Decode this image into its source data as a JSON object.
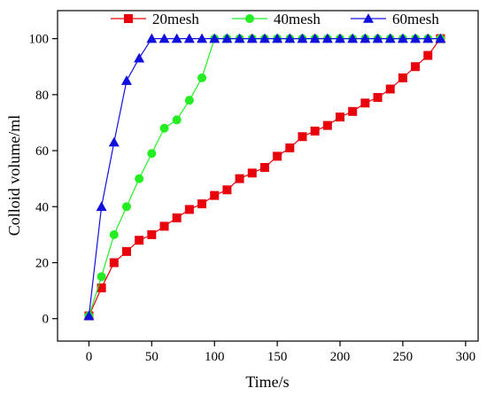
{
  "chart_data": {
    "type": "line",
    "xlabel": "Time/s",
    "ylabel": "Colloid volume/ml",
    "xlim": [
      -25,
      310
    ],
    "ylim": [
      -8,
      110
    ],
    "xticks": [
      0,
      50,
      100,
      150,
      200,
      250,
      300
    ],
    "yticks": [
      0,
      20,
      40,
      60,
      80,
      100
    ],
    "grid": false,
    "legend_position": "top",
    "series": [
      {
        "name": "20mesh",
        "color": "#e8000b",
        "marker": "square",
        "x": [
          0,
          10,
          20,
          30,
          40,
          50,
          60,
          70,
          80,
          90,
          100,
          110,
          120,
          130,
          140,
          150,
          160,
          170,
          180,
          190,
          200,
          210,
          220,
          230,
          240,
          250,
          260,
          270,
          280
        ],
        "y": [
          1,
          11,
          20,
          24,
          28,
          30,
          33,
          36,
          39,
          41,
          44,
          46,
          50,
          52,
          54,
          58,
          61,
          65,
          67,
          69,
          72,
          74,
          77,
          79,
          82,
          86,
          90,
          94,
          100
        ]
      },
      {
        "name": "40mesh",
        "color": "#22ee22",
        "marker": "circle",
        "x": [
          0,
          10,
          20,
          30,
          40,
          50,
          60,
          70,
          80,
          90,
          100,
          110,
          120,
          130,
          140,
          150,
          160,
          170,
          180,
          190,
          200,
          210,
          220,
          230,
          240,
          250,
          260,
          270,
          280
        ],
        "y": [
          1,
          15,
          30,
          40,
          50,
          59,
          68,
          71,
          78,
          86,
          100,
          100,
          100,
          100,
          100,
          100,
          100,
          100,
          100,
          100,
          100,
          100,
          100,
          100,
          100,
          100,
          100,
          100,
          100
        ]
      },
      {
        "name": "60mesh",
        "color": "#1010dd",
        "marker": "triangle",
        "x": [
          0,
          10,
          20,
          30,
          40,
          50,
          60,
          70,
          80,
          90,
          100,
          110,
          120,
          130,
          140,
          150,
          160,
          170,
          180,
          190,
          200,
          210,
          220,
          230,
          240,
          250,
          260,
          270,
          280
        ],
        "y": [
          1,
          40,
          63,
          85,
          93,
          100,
          100,
          100,
          100,
          100,
          100,
          100,
          100,
          100,
          100,
          100,
          100,
          100,
          100,
          100,
          100,
          100,
          100,
          100,
          100,
          100,
          100,
          100,
          100
        ]
      }
    ]
  }
}
